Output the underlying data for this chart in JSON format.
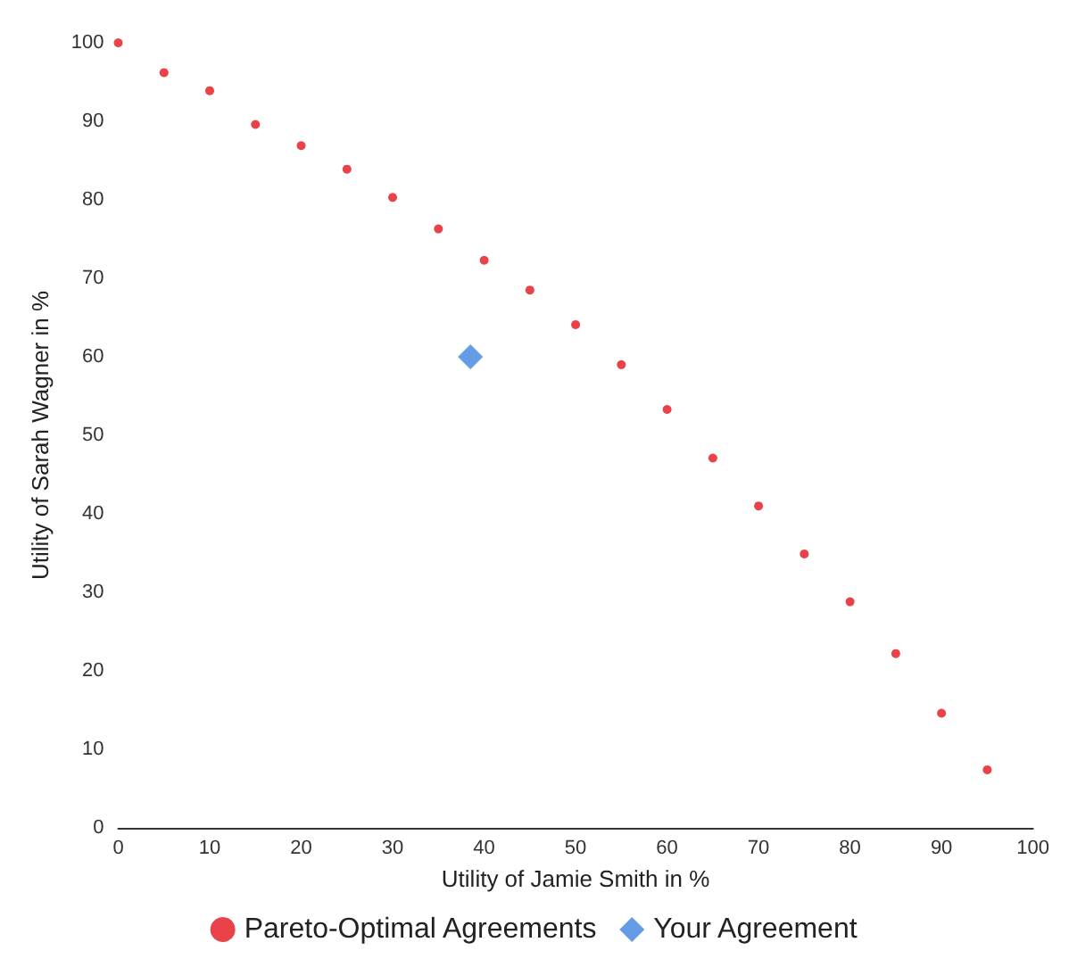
{
  "chart_data": {
    "type": "scatter",
    "xlabel": "Utility of Jamie Smith in %",
    "ylabel": "Utility of Sarah Wagner in %",
    "xlim": [
      0,
      100
    ],
    "ylim": [
      0,
      100
    ],
    "xticks": [
      0,
      10,
      20,
      30,
      40,
      50,
      60,
      70,
      80,
      90,
      100
    ],
    "yticks": [
      0,
      10,
      20,
      30,
      40,
      50,
      60,
      70,
      80,
      90,
      100
    ],
    "grid": false,
    "legend": "bottom",
    "series": [
      {
        "name": "Pareto-Optimal Agreements",
        "color": "#e3131b",
        "marker": "circle",
        "x": [
          0,
          5,
          10,
          15,
          20,
          25,
          30,
          35,
          40,
          45,
          50,
          55,
          60,
          65,
          70,
          75,
          80,
          85,
          90,
          95
        ],
        "values": [
          100,
          96.2,
          93.9,
          89.6,
          86.9,
          83.9,
          80.3,
          76.3,
          72.3,
          68.5,
          64.1,
          59,
          53.3,
          47.1,
          41,
          34.9,
          28.8,
          22.2,
          14.6,
          7.4
        ]
      },
      {
        "name": "Your Agreement",
        "color": "#3d85e0",
        "marker": "diamond",
        "x": [
          38.5
        ],
        "values": [
          60
        ]
      }
    ]
  }
}
